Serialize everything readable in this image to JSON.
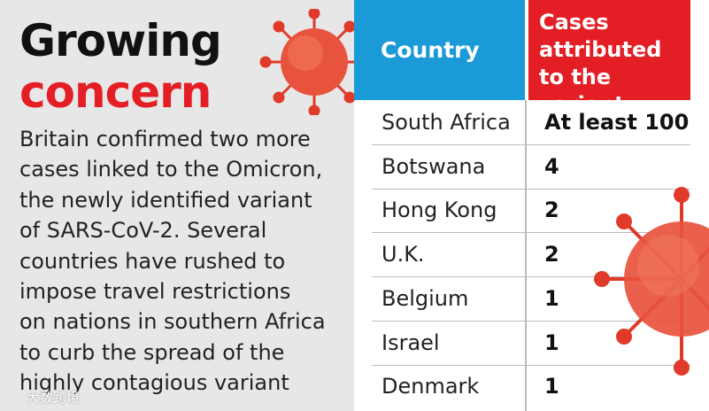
{
  "header": {
    "title_line1": "Growing",
    "title_line2": "concern"
  },
  "body": {
    "lines": [
      "Britain confirmed two more",
      "cases linked to the Omicron,",
      "the newly identified variant",
      "of SARS-CoV-2. Several",
      "countries have rushed to",
      "impose travel restrictions",
      "on nations in southern Africa",
      "to curb the spread of the",
      "highly contagious variant"
    ]
  },
  "table": {
    "columns": [
      "Country",
      "Cases attributed to the variant"
    ],
    "rows": [
      [
        "South Africa",
        "At least 100"
      ],
      [
        "Botswana",
        "4"
      ],
      [
        "Hong Kong",
        "2"
      ],
      [
        "U.K.",
        "2"
      ],
      [
        "Belgium",
        "1"
      ],
      [
        "Israel",
        "1"
      ],
      [
        "Denmark",
        "1"
      ]
    ]
  },
  "watermark": "大数跨境"
}
